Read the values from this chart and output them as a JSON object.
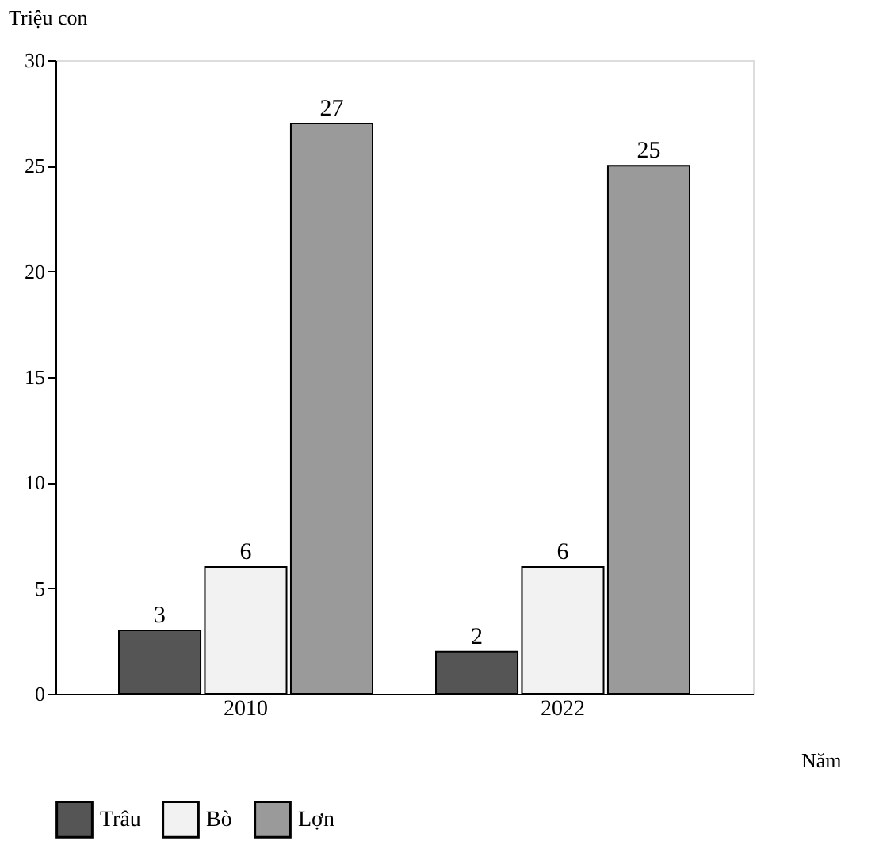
{
  "chart_data": {
    "type": "bar",
    "categories": [
      "2010",
      "2022"
    ],
    "series": [
      {
        "name": "Trâu",
        "color": "#555555",
        "values": [
          3,
          2
        ]
      },
      {
        "name": "Bò",
        "color": "#f2f2f2",
        "values": [
          6,
          6
        ]
      },
      {
        "name": "Lợn",
        "color": "#9a9a9a",
        "values": [
          27,
          25
        ]
      }
    ],
    "ylabel": "Triệu con",
    "xlabel": "Năm",
    "ylim": [
      0,
      30
    ],
    "yticks": [
      0,
      5,
      10,
      15,
      20,
      25,
      30
    ],
    "data_labels": true,
    "legend": "bottom",
    "grid": false
  }
}
